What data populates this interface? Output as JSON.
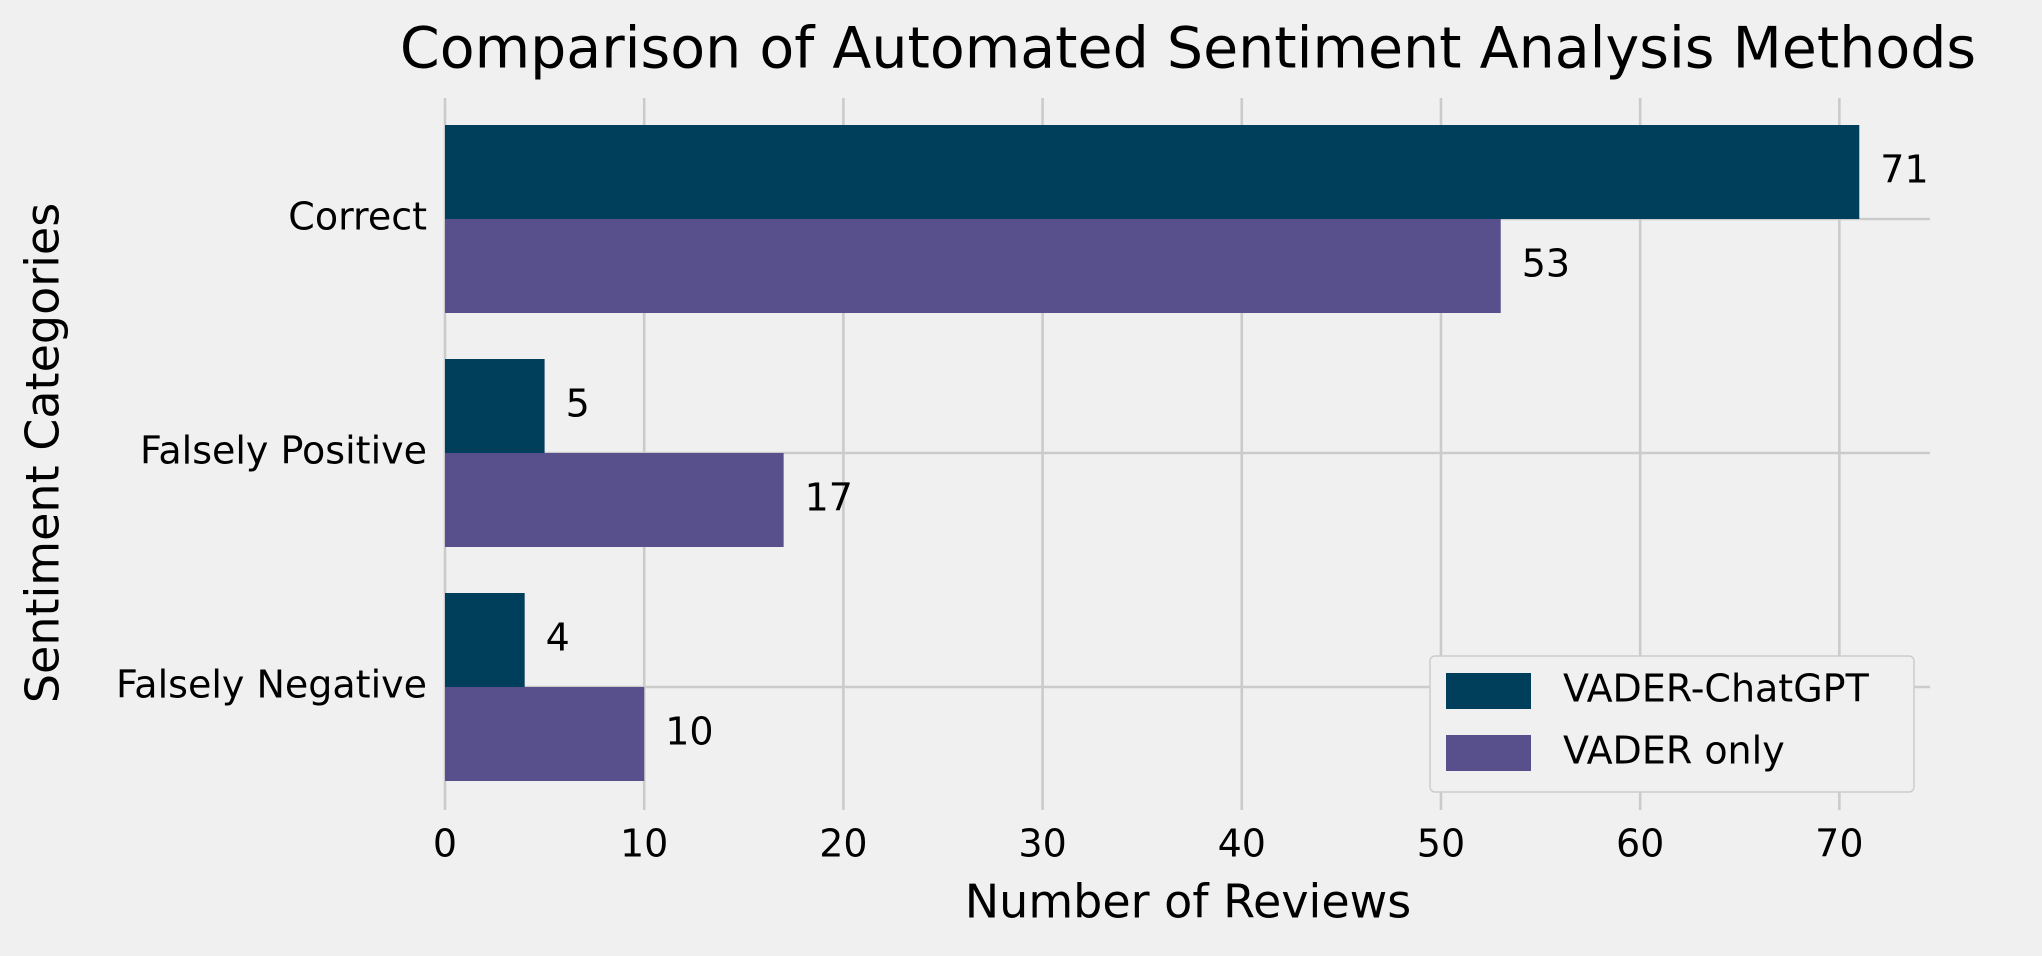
{
  "chart_data": {
    "type": "bar",
    "orientation": "horizontal",
    "title": "Comparison of Automated Sentiment Analysis Methods",
    "xlabel": "Number of Reviews",
    "ylabel": "Sentiment Categories",
    "categories": [
      "Correct",
      "Falsely Positive",
      "Falsely Negative"
    ],
    "series": [
      {
        "name": "VADER-ChatGPT",
        "color": "#003f5c",
        "values": [
          71,
          5,
          4
        ]
      },
      {
        "name": "VADER only",
        "color": "#58508d",
        "values": [
          53,
          17,
          10
        ]
      }
    ],
    "xlim": [
      0,
      74.55
    ],
    "xticks": [
      0,
      10,
      20,
      30,
      40,
      50,
      60,
      70
    ],
    "grid": true,
    "legend": "lower right",
    "data_labels": true
  }
}
